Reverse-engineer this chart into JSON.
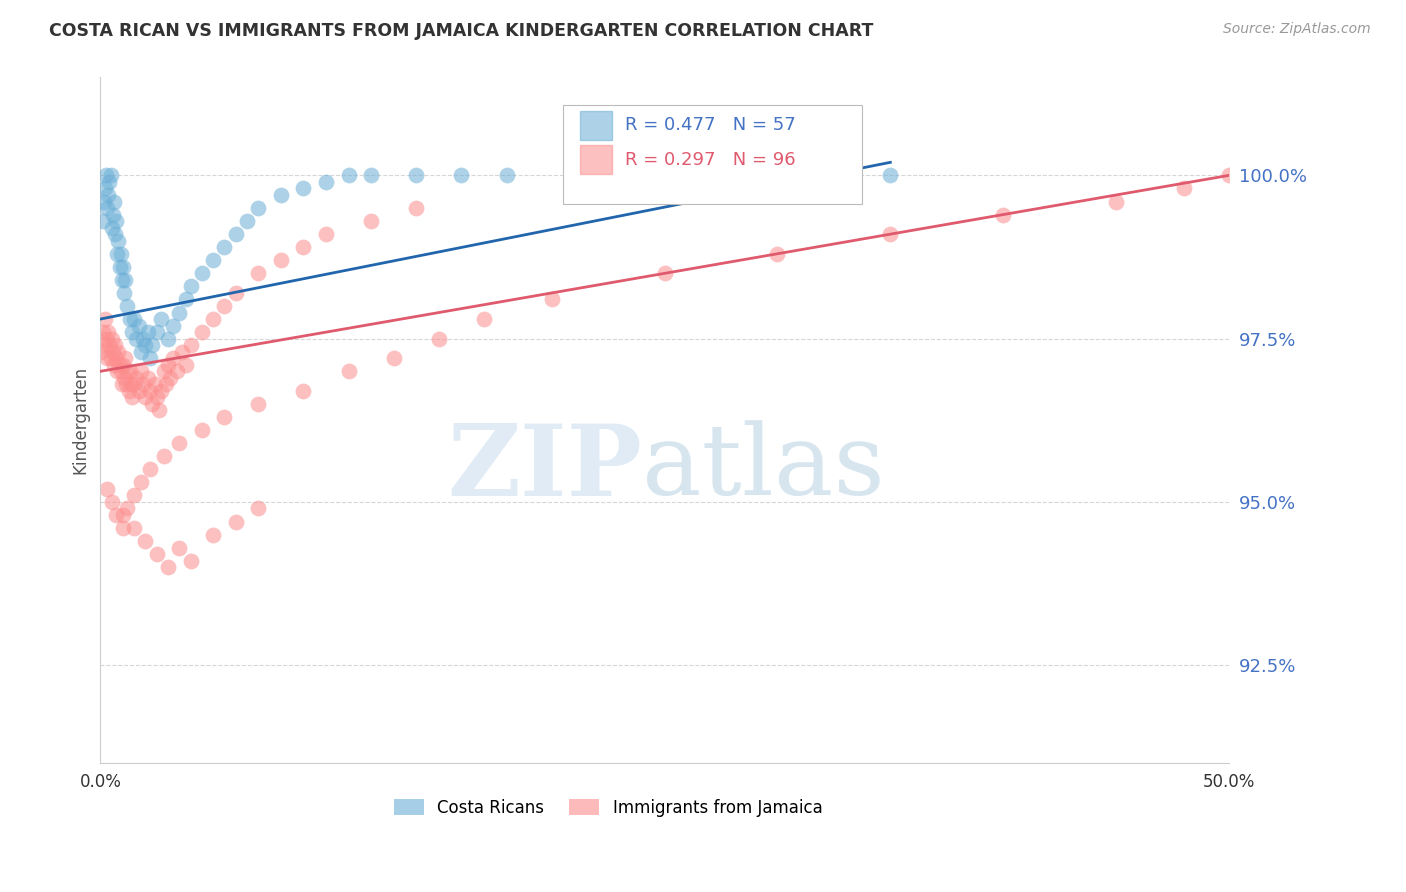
{
  "title": "COSTA RICAN VS IMMIGRANTS FROM JAMAICA KINDERGARTEN CORRELATION CHART",
  "source": "Source: ZipAtlas.com",
  "ylabel": "Kindergarten",
  "xlim": [
    0.0,
    50.0
  ],
  "ylim": [
    91.0,
    101.5
  ],
  "yticks": [
    92.5,
    95.0,
    97.5,
    100.0
  ],
  "ytick_labels": [
    "92.5%",
    "95.0%",
    "97.5%",
    "100.0%"
  ],
  "legend_blue_r": 0.477,
  "legend_blue_n": 57,
  "legend_pink_r": 0.297,
  "legend_pink_n": 96,
  "blue_color": "#6baed6",
  "pink_color": "#fc8d8d",
  "blue_line_color": "#2166ac",
  "pink_line_color": "#e05a6e",
  "background_color": "#ffffff",
  "grid_color": "#cccccc",
  "blue_scatter_x": [
    0.1,
    0.15,
    0.2,
    0.25,
    0.3,
    0.35,
    0.4,
    0.45,
    0.5,
    0.55,
    0.6,
    0.65,
    0.7,
    0.75,
    0.8,
    0.85,
    0.9,
    0.95,
    1.0,
    1.05,
    1.1,
    1.2,
    1.3,
    1.4,
    1.5,
    1.6,
    1.7,
    1.8,
    1.9,
    2.0,
    2.1,
    2.2,
    2.3,
    2.5,
    2.7,
    3.0,
    3.2,
    3.5,
    3.8,
    4.0,
    4.5,
    5.0,
    5.5,
    6.0,
    6.5,
    7.0,
    8.0,
    9.0,
    10.0,
    11.0,
    12.0,
    14.0,
    16.0,
    18.0,
    22.0,
    28.0,
    35.0
  ],
  "blue_scatter_y": [
    99.3,
    99.6,
    99.8,
    100.0,
    99.5,
    99.7,
    99.9,
    100.0,
    99.2,
    99.4,
    99.6,
    99.1,
    99.3,
    98.8,
    99.0,
    98.6,
    98.8,
    98.4,
    98.6,
    98.2,
    98.4,
    98.0,
    97.8,
    97.6,
    97.8,
    97.5,
    97.7,
    97.3,
    97.5,
    97.4,
    97.6,
    97.2,
    97.4,
    97.6,
    97.8,
    97.5,
    97.7,
    97.9,
    98.1,
    98.3,
    98.5,
    98.7,
    98.9,
    99.1,
    99.3,
    99.5,
    99.7,
    99.8,
    99.9,
    100.0,
    100.0,
    100.0,
    100.0,
    100.0,
    100.0,
    100.0,
    100.0
  ],
  "pink_scatter_x": [
    0.05,
    0.1,
    0.15,
    0.2,
    0.25,
    0.3,
    0.35,
    0.4,
    0.45,
    0.5,
    0.55,
    0.6,
    0.65,
    0.7,
    0.75,
    0.8,
    0.85,
    0.9,
    0.95,
    1.0,
    1.05,
    1.1,
    1.15,
    1.2,
    1.25,
    1.3,
    1.35,
    1.4,
    1.5,
    1.6,
    1.7,
    1.8,
    1.9,
    2.0,
    2.1,
    2.2,
    2.3,
    2.4,
    2.5,
    2.6,
    2.7,
    2.8,
    2.9,
    3.0,
    3.1,
    3.2,
    3.4,
    3.6,
    3.8,
    4.0,
    4.5,
    5.0,
    5.5,
    6.0,
    7.0,
    8.0,
    9.0,
    10.0,
    12.0,
    14.0,
    1.0,
    1.5,
    2.0,
    2.5,
    3.0,
    3.5,
    4.0,
    5.0,
    6.0,
    7.0,
    0.3,
    0.5,
    0.7,
    1.0,
    1.2,
    1.5,
    1.8,
    2.2,
    2.8,
    3.5,
    4.5,
    5.5,
    7.0,
    9.0,
    11.0,
    13.0,
    15.0,
    17.0,
    20.0,
    25.0,
    30.0,
    35.0,
    40.0,
    45.0,
    48.0,
    50.0
  ],
  "pink_scatter_y": [
    97.3,
    97.6,
    97.4,
    97.8,
    97.5,
    97.2,
    97.6,
    97.4,
    97.2,
    97.5,
    97.3,
    97.1,
    97.4,
    97.2,
    97.0,
    97.3,
    97.1,
    97.0,
    96.8,
    97.1,
    96.9,
    97.2,
    96.8,
    97.0,
    96.7,
    97.0,
    96.8,
    96.6,
    96.8,
    96.9,
    96.7,
    97.0,
    96.8,
    96.6,
    96.9,
    96.7,
    96.5,
    96.8,
    96.6,
    96.4,
    96.7,
    97.0,
    96.8,
    97.1,
    96.9,
    97.2,
    97.0,
    97.3,
    97.1,
    97.4,
    97.6,
    97.8,
    98.0,
    98.2,
    98.5,
    98.7,
    98.9,
    99.1,
    99.3,
    99.5,
    94.8,
    94.6,
    94.4,
    94.2,
    94.0,
    94.3,
    94.1,
    94.5,
    94.7,
    94.9,
    95.2,
    95.0,
    94.8,
    94.6,
    94.9,
    95.1,
    95.3,
    95.5,
    95.7,
    95.9,
    96.1,
    96.3,
    96.5,
    96.7,
    97.0,
    97.2,
    97.5,
    97.8,
    98.1,
    98.5,
    98.8,
    99.1,
    99.4,
    99.6,
    99.8,
    100.0
  ]
}
